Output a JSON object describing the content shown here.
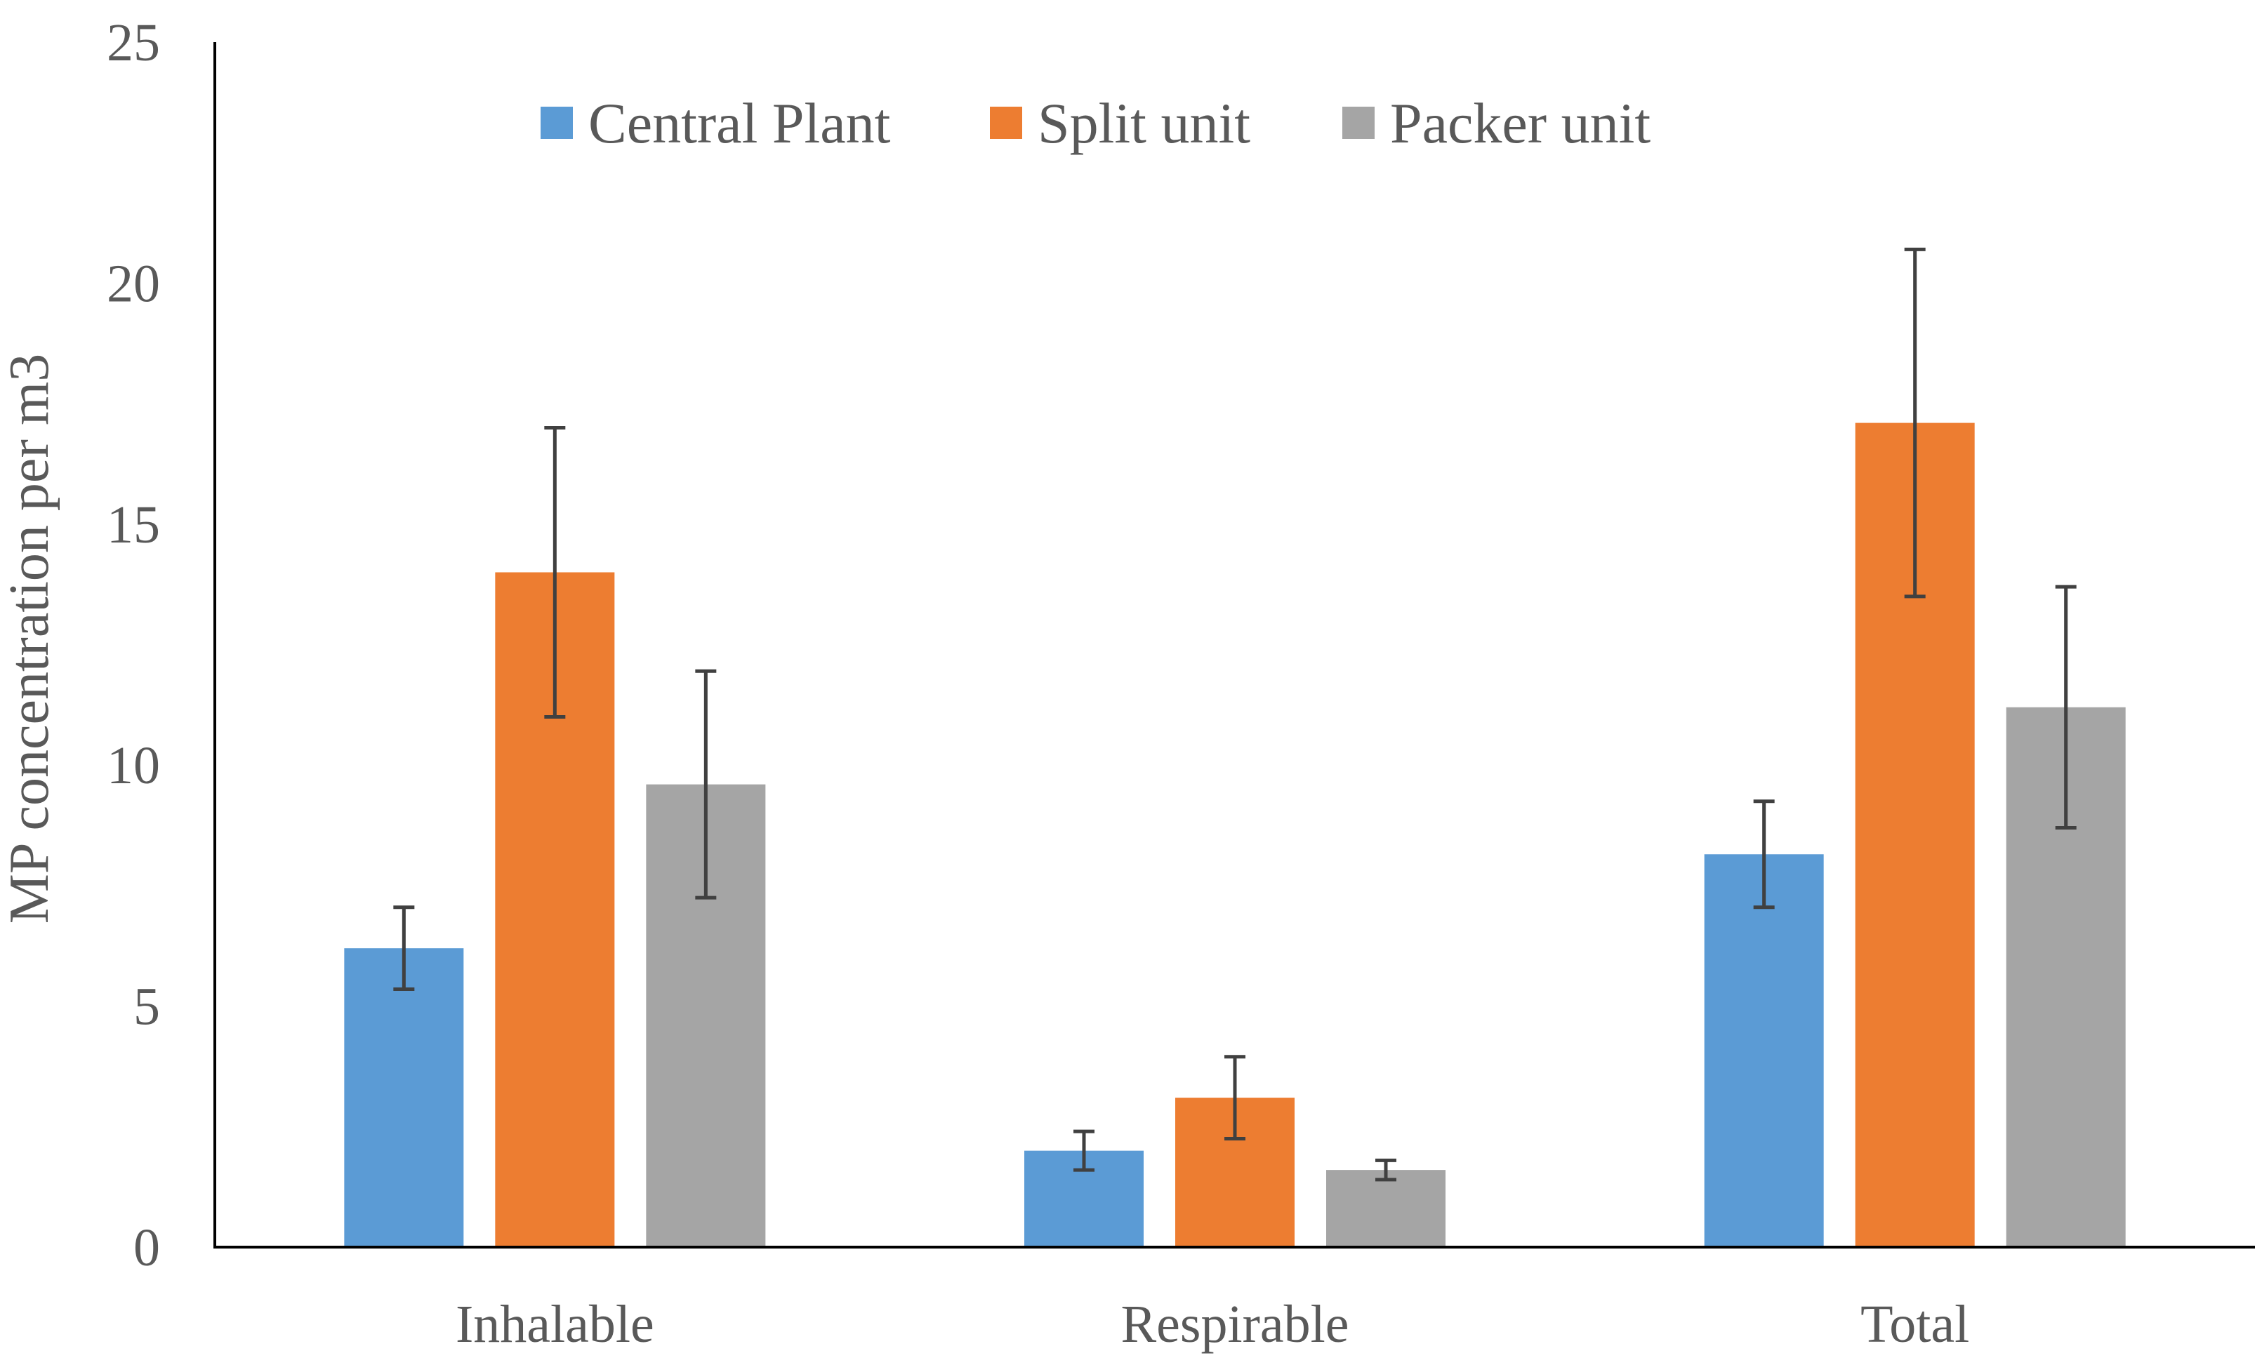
{
  "chart_data": {
    "type": "bar",
    "title": "",
    "xlabel": "",
    "ylabel": "MP concentration per m3",
    "ylim": [
      0,
      25
    ],
    "yticks": [
      0,
      5,
      10,
      15,
      20,
      25
    ],
    "grid": false,
    "legend_position": "top",
    "categories": [
      "Inhalable",
      "Respirable",
      "Total"
    ],
    "series": [
      {
        "name": "Central Plant",
        "color": "#5B9BD5",
        "values": [
          6.2,
          2.0,
          8.15
        ],
        "error": [
          0.85,
          0.4,
          1.1
        ]
      },
      {
        "name": "Split unit",
        "color": "#ED7D31",
        "values": [
          14.0,
          3.1,
          17.1
        ],
        "error": [
          3.0,
          0.85,
          3.6
        ]
      },
      {
        "name": "Packer unit",
        "color": "#A5A5A5",
        "values": [
          9.6,
          1.6,
          11.2
        ],
        "error": [
          2.35,
          0.2,
          2.5
        ]
      }
    ]
  }
}
